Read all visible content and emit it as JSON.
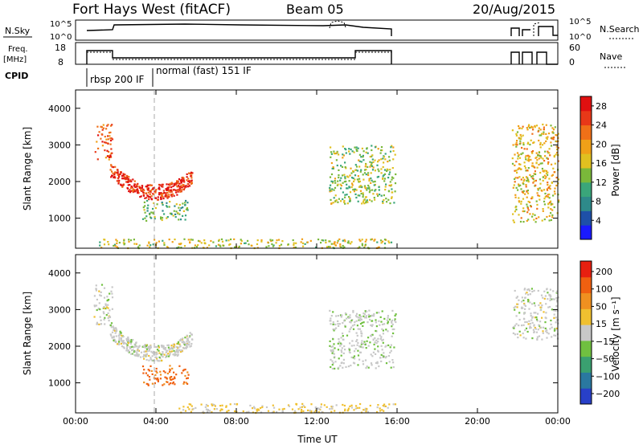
{
  "header": {
    "station": "Fort Hays West (fitACF)",
    "beam": "Beam 05",
    "date": "20/Aug/2015"
  },
  "labels": {
    "nsky": "N.Sky",
    "nsearch": "N.Search",
    "freq_top": "Freq.",
    "freq_unit": "[MHz]",
    "nave": "Nave",
    "cpid": "CPID",
    "cpid_mode_1": "rbsp 200 IF",
    "cpid_mode_2": "normal (fast) 151 IF",
    "nsky_tick_hi": "10^5",
    "nsky_tick_lo": "10^0",
    "nsearch_tick_hi": "10^5",
    "nsearch_tick_lo": "10^0",
    "freq_tick_hi": "18",
    "freq_tick_lo": "8",
    "nave_tick_hi": "60",
    "nave_tick_lo": "0",
    "xlabel": "Time UT",
    "ylabel": "Slant Range [km]",
    "power_label": "Power [dB]",
    "velocity_label": "Velocity [m s⁻¹]"
  },
  "colors": {
    "power_scale": [
      "#1a1aff",
      "#1e50a8",
      "#2e8a8a",
      "#3aa67a",
      "#7ab83a",
      "#e0c020",
      "#f0a018",
      "#f07018",
      "#e83818",
      "#e01010"
    ],
    "velocity_scale": [
      "#2840c8",
      "#2a78a0",
      "#3aa070",
      "#70c040",
      "#c8c8c8",
      "#f0c030",
      "#f09020",
      "#f06010",
      "#e82010"
    ],
    "grey_fill": "#c8c8c8"
  },
  "chart_data": [
    {
      "type": "heatmap",
      "title": "Power",
      "xlabel": "Time UT",
      "ylabel": "Slant Range [km]",
      "xlim": [
        0,
        24
      ],
      "ylim": [
        180,
        4500
      ],
      "x_ticks": [
        "00:00",
        "04:00",
        "08:00",
        "12:00",
        "16:00",
        "20:00",
        "00:00"
      ],
      "y_ticks": [
        1000,
        2000,
        3000,
        4000
      ],
      "colorbar": {
        "label": "Power [dB]",
        "ticks": [
          4,
          8,
          12,
          16,
          20,
          24,
          28
        ],
        "range": [
          0,
          30
        ]
      },
      "features": [
        {
          "name": "early band",
          "t": [
            0.9,
            1.8
          ],
          "range_km": [
            2600,
            3600
          ],
          "level_db": 24
        },
        {
          "name": "descending band",
          "t": [
            1.7,
            5.8
          ],
          "range_km": [
            1400,
            2700
          ],
          "level_db": 26
        },
        {
          "name": "patch near 1000 km",
          "t": [
            3.3,
            5.6
          ],
          "range_km": [
            950,
            1500
          ],
          "level_db": 12
        },
        {
          "name": "ground scatter",
          "t": [
            1.0,
            15.9
          ],
          "range_km": [
            200,
            450
          ],
          "level_db": 16
        },
        {
          "name": "afternoon patches",
          "t": [
            12.6,
            15.9
          ],
          "range_km": [
            1400,
            3000
          ],
          "level_db": 14
        },
        {
          "name": "late patches",
          "t": [
            21.7,
            24.0
          ],
          "range_km": [
            900,
            3600
          ],
          "level_db": 18
        }
      ]
    },
    {
      "type": "heatmap",
      "title": "Velocity",
      "xlabel": "Time UT",
      "ylabel": "Slant Range [km]",
      "xlim": [
        0,
        24
      ],
      "ylim": [
        180,
        4500
      ],
      "x_ticks": [
        "00:00",
        "04:00",
        "08:00",
        "12:00",
        "16:00",
        "20:00",
        "00:00"
      ],
      "y_ticks": [
        1000,
        2000,
        3000,
        4000
      ],
      "colorbar": {
        "label": "Velocity [m s⁻¹]",
        "ticks": [
          200,
          100,
          50,
          15,
          -15,
          -50,
          -100,
          -200
        ],
        "range": [
          -250,
          250
        ]
      },
      "features": [
        {
          "name": "early band",
          "t": [
            0.9,
            1.8
          ],
          "range_km": [
            2600,
            3700
          ],
          "velocity": 0
        },
        {
          "name": "descending band",
          "t": [
            1.7,
            5.8
          ],
          "range_km": [
            1500,
            2800
          ],
          "velocity": 0
        },
        {
          "name": "patch near 1000 km",
          "t": [
            3.3,
            5.6
          ],
          "range_km": [
            950,
            1500
          ],
          "velocity": -110
        },
        {
          "name": "ground scatter",
          "t": [
            5.0,
            15.9
          ],
          "range_km": [
            200,
            450
          ],
          "velocity": -20
        },
        {
          "name": "afternoon patches",
          "t": [
            12.6,
            15.9
          ],
          "range_km": [
            1400,
            3000
          ],
          "velocity": 5
        },
        {
          "name": "late patches",
          "t": [
            21.7,
            24.0
          ],
          "range_km": [
            2200,
            3600
          ],
          "velocity": 0
        }
      ]
    }
  ]
}
